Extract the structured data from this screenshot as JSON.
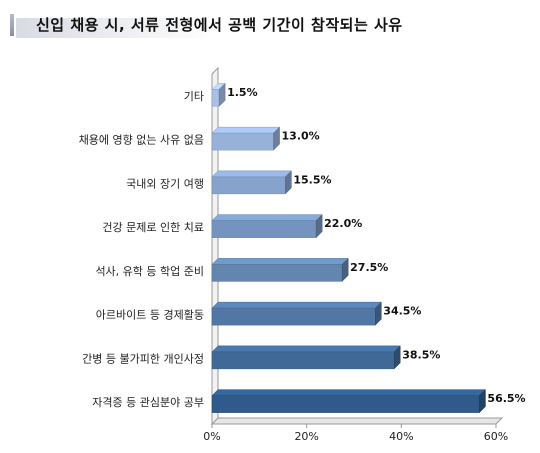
{
  "title": "신입 채용 시, 서류 전형에서 공백 기간이 참작되는 사유",
  "colors": {
    "axis": "#9a9a9a",
    "grid": "#c8c8c8",
    "bar_light": "#a8c0e6",
    "bar_dark": "#2f5a8a"
  },
  "chart_data": {
    "type": "bar",
    "orientation": "horizontal",
    "title": "신입 채용 시, 서류 전형에서 공백 기간이 참작되는 사유",
    "categories": [
      "기타",
      "채용에 영향 없는 사유 없음",
      "국내외 장기 여행",
      "건강 문제로 인한 치료",
      "석사, 유학 등 학업 준비",
      "아르바이트 등 경제활동",
      "간병 등 불가피한 개인사정",
      "자격증 등 관심분야 공부"
    ],
    "values": [
      1.5,
      13.0,
      15.5,
      22.0,
      27.5,
      34.5,
      38.5,
      56.5
    ],
    "value_labels": [
      "1.5%",
      "13.0%",
      "15.5%",
      "22.0%",
      "27.5%",
      "34.5%",
      "38.5%",
      "56.5%"
    ],
    "xlim": [
      0,
      60
    ],
    "xticks": [
      0,
      20,
      40,
      60
    ],
    "xtick_labels": [
      "0%",
      "20%",
      "40%",
      "60%"
    ],
    "xlabel": "",
    "ylabel": "",
    "grid": false,
    "legend": "none"
  }
}
